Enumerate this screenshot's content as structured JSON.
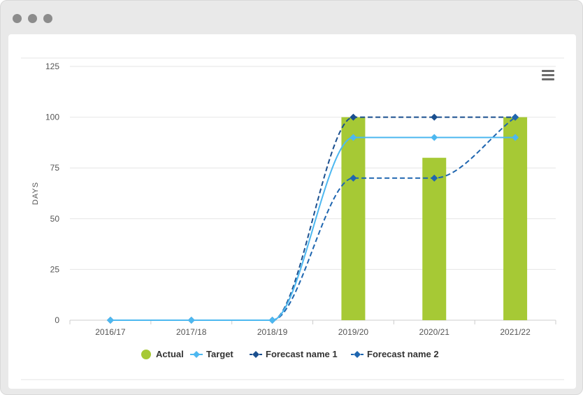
{
  "window": {
    "controls": [
      "window-dot",
      "window-dot",
      "window-dot"
    ]
  },
  "menu": {
    "icon": "hamburger-menu-icon"
  },
  "colors": {
    "actual": "#a6c935",
    "target": "#4db8f0",
    "forecast1": "#1a4f8f",
    "forecast2": "#1f66b0",
    "grid": "#e6e6e6",
    "axis_text": "#555555"
  },
  "chart_data": {
    "type": "bar",
    "categories": [
      "2016/17",
      "2017/18",
      "2018/19",
      "2019/20",
      "2020/21",
      "2021/22"
    ],
    "ylabel": "DAYS",
    "xlabel": "",
    "ylim": [
      0,
      125
    ],
    "yticks": [
      0,
      25,
      50,
      75,
      100,
      125
    ],
    "grid": true,
    "legend_position": "bottom-center",
    "series": [
      {
        "name": "Actual",
        "type": "bar",
        "values": [
          null,
          null,
          null,
          100,
          80,
          100
        ]
      },
      {
        "name": "Target",
        "type": "line",
        "style": "solid",
        "values": [
          0,
          0,
          0,
          90,
          90,
          90
        ]
      },
      {
        "name": "Forecast name 1",
        "type": "line",
        "style": "dashed",
        "values": [
          0,
          0,
          0,
          100,
          100,
          100
        ]
      },
      {
        "name": "Forecast name 2",
        "type": "line",
        "style": "dashed",
        "values": [
          0,
          0,
          0,
          70,
          70,
          100
        ]
      }
    ]
  }
}
